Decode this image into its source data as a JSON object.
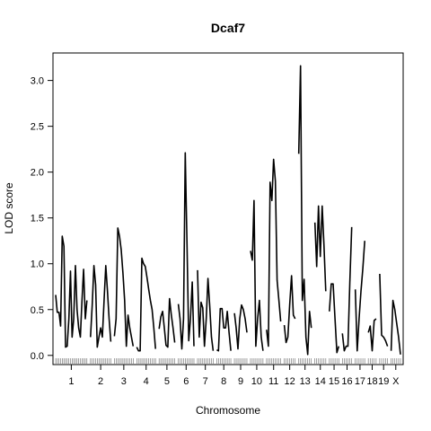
{
  "chart_data": {
    "type": "line",
    "title": "Dcaf7",
    "xlabel": "Chromosome",
    "ylabel": "LOD score",
    "ylim": [
      -0.1,
      3.3
    ],
    "y_ticks": [
      0.0,
      0.5,
      1.0,
      1.5,
      2.0,
      2.5,
      3.0
    ],
    "y_tick_labels": [
      "0.0",
      "0.5",
      "1.0",
      "1.5",
      "2.0",
      "2.5",
      "3.0"
    ],
    "chromosomes": [
      {
        "label": "1",
        "length": 20,
        "lod": [
          0.66,
          0.47,
          0.47,
          0.32,
          1.3,
          1.19,
          0.09,
          0.1,
          0.4,
          0.92,
          0.2,
          0.4,
          0.98,
          0.5,
          0.3,
          0.2,
          0.6,
          0.94,
          0.4,
          0.6
        ]
      },
      {
        "label": "2",
        "length": 13,
        "lod": [
          0.2,
          0.55,
          0.98,
          0.77,
          0.09,
          0.2,
          0.3,
          0.2,
          0.6,
          0.98,
          0.7,
          0.4,
          0.15
        ]
      },
      {
        "label": "3",
        "length": 12,
        "lod": [
          0.21,
          0.4,
          1.39,
          1.3,
          1.15,
          0.9,
          0.6,
          0.1,
          0.44,
          0.3,
          0.2,
          0.1
        ]
      },
      {
        "label": "4",
        "length": 12,
        "lod": [
          0.09,
          0.05,
          0.05,
          1.06,
          1.0,
          0.97,
          0.85,
          0.72,
          0.6,
          0.5,
          0.3,
          0.07
        ]
      },
      {
        "label": "5",
        "length": 10,
        "lod": [
          0.29,
          0.42,
          0.48,
          0.3,
          0.11,
          0.09,
          0.62,
          0.45,
          0.3,
          0.14
        ]
      },
      {
        "label": "6",
        "length": 10,
        "lod": [
          0.56,
          0.4,
          0.07,
          0.4,
          2.21,
          1.2,
          0.16,
          0.4,
          0.8,
          0.1
        ]
      },
      {
        "label": "7",
        "length": 10,
        "lod": [
          0.93,
          0.2,
          0.58,
          0.52,
          0.1,
          0.4,
          0.84,
          0.55,
          0.2,
          0.05
        ]
      },
      {
        "label": "8",
        "length": 9,
        "lod": [
          0.06,
          0.05,
          0.51,
          0.51,
          0.3,
          0.3,
          0.48,
          0.25,
          0.05
        ]
      },
      {
        "label": "9",
        "length": 8,
        "lod": [
          0.46,
          0.3,
          0.07,
          0.4,
          0.55,
          0.5,
          0.4,
          0.25
        ]
      },
      {
        "label": "10",
        "length": 8,
        "lod": [
          1.14,
          1.04,
          1.69,
          0.1,
          0.4,
          0.6,
          0.2,
          0.05
        ]
      },
      {
        "label": "11",
        "length": 9,
        "lod": [
          0.28,
          0.1,
          1.89,
          1.69,
          2.14,
          1.9,
          0.82,
          0.6,
          0.37
        ]
      },
      {
        "label": "12",
        "length": 7,
        "lod": [
          0.33,
          0.14,
          0.2,
          0.55,
          0.87,
          0.44,
          0.4
        ]
      },
      {
        "label": "13",
        "length": 8,
        "lod": [
          2.2,
          3.16,
          0.6,
          0.83,
          0.2,
          0.01,
          0.48,
          0.3
        ]
      },
      {
        "label": "14",
        "length": 7,
        "lod": [
          1.45,
          0.97,
          1.63,
          1.08,
          1.63,
          1.2,
          0.7
        ]
      },
      {
        "label": "15",
        "length": 6,
        "lod": [
          0.48,
          0.78,
          0.78,
          0.4,
          0.03,
          0.1
        ]
      },
      {
        "label": "16",
        "length": 6,
        "lod": [
          0.24,
          0.05,
          0.1,
          0.1,
          0.8,
          1.4
        ]
      },
      {
        "label": "17",
        "length": 6,
        "lod": [
          0.72,
          0.05,
          0.4,
          0.7,
          0.95,
          1.25
        ]
      },
      {
        "label": "18",
        "length": 5,
        "lod": [
          0.25,
          0.32,
          0.05,
          0.38,
          0.4
        ]
      },
      {
        "label": "19",
        "length": 5,
        "lod": [
          0.89,
          0.22,
          0.2,
          0.16,
          0.1
        ]
      },
      {
        "label": "X",
        "length": 6,
        "lod": [
          0.05,
          0.6,
          0.5,
          0.35,
          0.2,
          0.01
        ]
      }
    ]
  }
}
